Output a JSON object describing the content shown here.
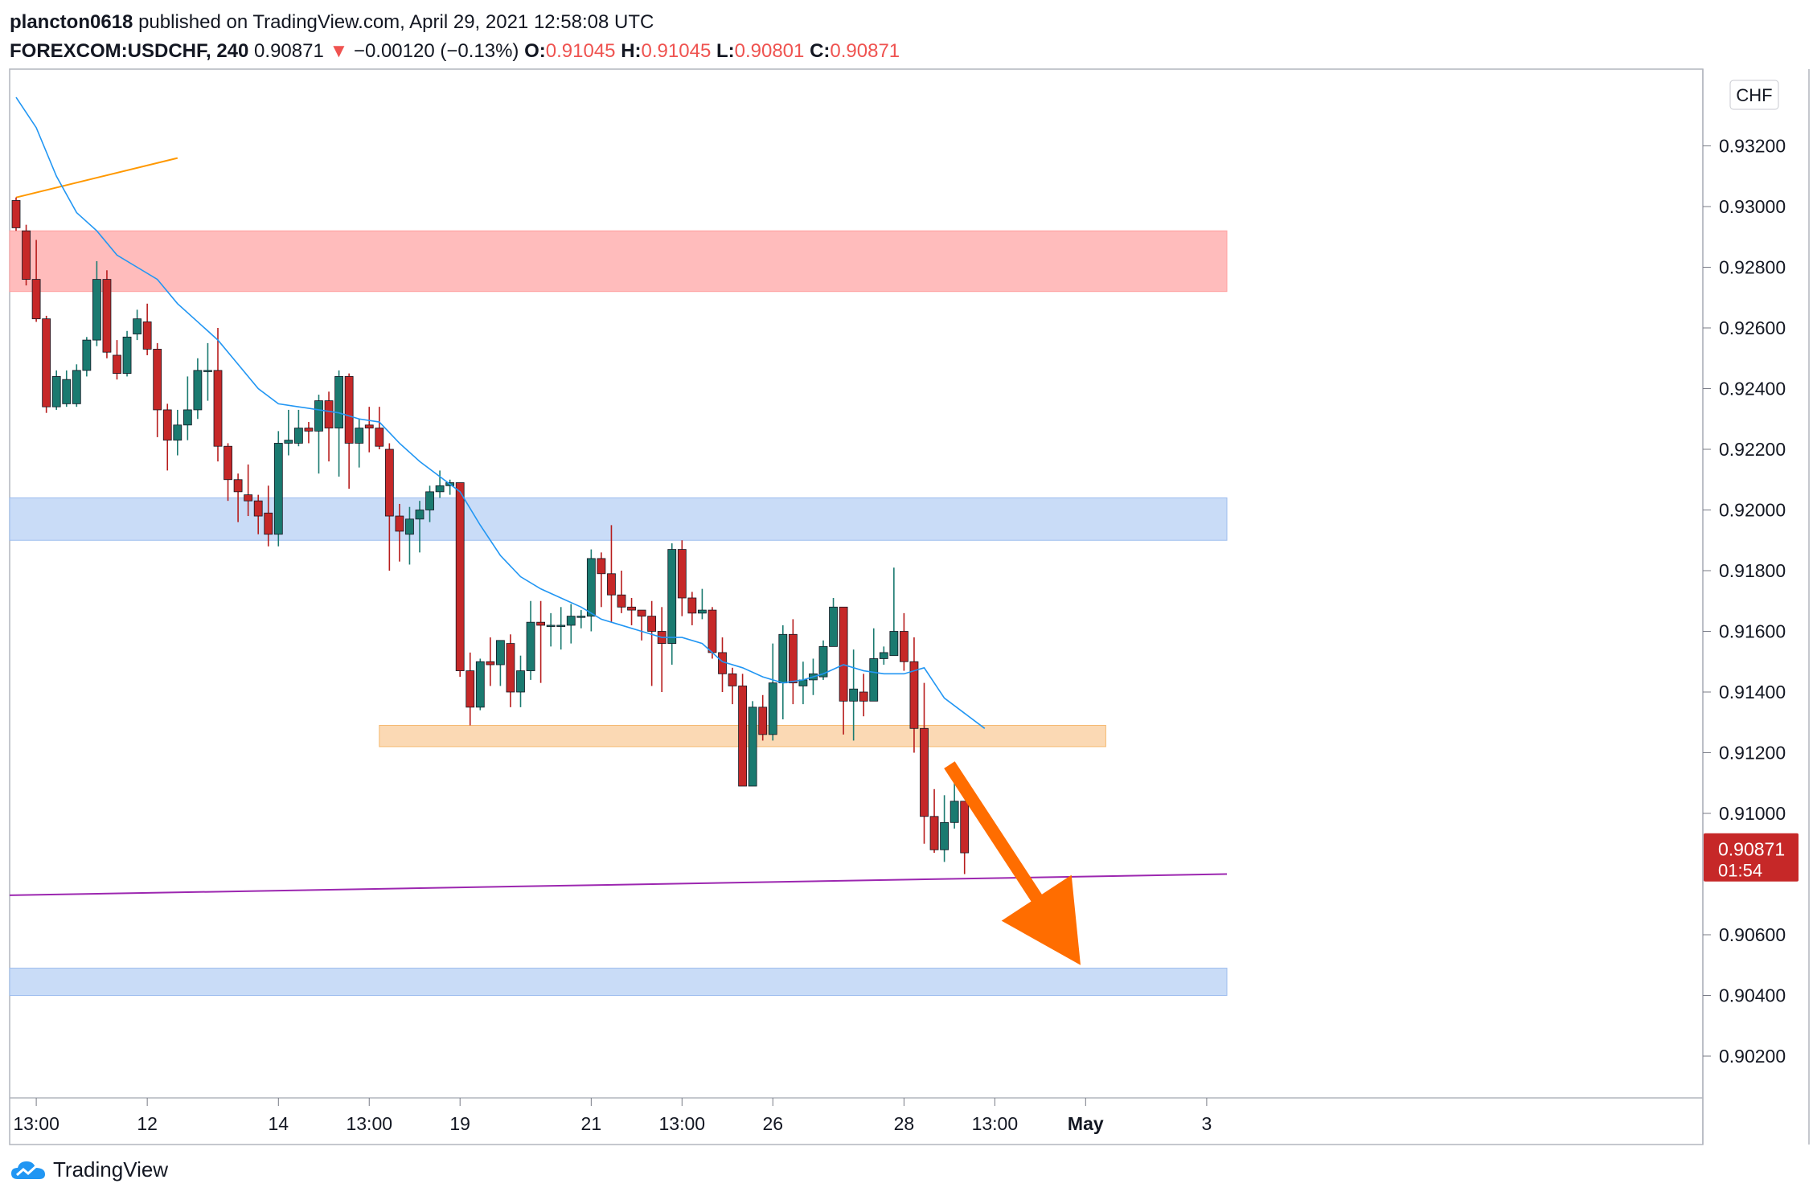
{
  "header": {
    "publisher": "plancton0618",
    "published_text": "published on TradingView.com, April 29, 2021 12:58:08 UTC",
    "symbol": "FOREXCOM:USDCHF, 240",
    "last": "0.90871",
    "arrow": "▼",
    "change": "−0.00120 (−0.13%)",
    "o_label": "O:",
    "o_value": "0.91045",
    "h_label": "H:",
    "h_value": "0.91045",
    "l_label": "L:",
    "l_value": "0.90801",
    "c_label": "C:",
    "c_value": "0.90871"
  },
  "footer": {
    "brand": "TradingView"
  },
  "colors": {
    "bull": "#26a69a",
    "bull_fill": "#1a7a70",
    "bear": "#c62828",
    "bear_wick": "#b71c1c",
    "ma": "#2196f3",
    "trend_orange": "#ff9800",
    "trend_purple": "#9c27b0",
    "zone_red": "#ffbcbc",
    "zone_blue": "#c9dcf7",
    "zone_orange": "#fbd9b4",
    "arrow": "#ff6d00",
    "price_badge": "#c62828"
  },
  "chart_data": {
    "type": "candlestick",
    "currency_label": "CHF",
    "y_ticks": [
      "0.93200",
      "0.93000",
      "0.92800",
      "0.92600",
      "0.92400",
      "0.92200",
      "0.92000",
      "0.91800",
      "0.91600",
      "0.91400",
      "0.91200",
      "0.91000",
      "0.90600",
      "0.90400",
      "0.90200"
    ],
    "y_tick_values": [
      0.932,
      0.93,
      0.928,
      0.926,
      0.924,
      0.922,
      0.92,
      0.918,
      0.916,
      0.914,
      0.912,
      0.91,
      0.906,
      0.904,
      0.902
    ],
    "ylim": [
      0.9008,
      0.934
    ],
    "x_ticks": [
      {
        "label": "13:00",
        "index": 2
      },
      {
        "label": "12",
        "index": 13
      },
      {
        "label": "14",
        "index": 26
      },
      {
        "label": "13:00",
        "index": 35
      },
      {
        "label": "19",
        "index": 44
      },
      {
        "label": "21",
        "index": 57
      },
      {
        "label": "13:00",
        "index": 66
      },
      {
        "label": "26",
        "index": 75
      },
      {
        "label": "28",
        "index": 88
      },
      {
        "label": "13:00",
        "index": 97
      },
      {
        "label": "May",
        "index": 106
      },
      {
        "label": "3",
        "index": 118
      }
    ],
    "current_price": {
      "value": 0.90871,
      "label": "0.90871",
      "countdown": "01:54"
    },
    "zones": [
      {
        "type": "resistance",
        "y_top": 0.9292,
        "y_bottom": 0.9272,
        "from_index": -1,
        "to_index": 120
      },
      {
        "type": "support",
        "y_top": 0.9204,
        "y_bottom": 0.919,
        "from_index": -1,
        "to_index": 120
      },
      {
        "type": "support",
        "y_top": 0.9049,
        "y_bottom": 0.904,
        "from_index": -1,
        "to_index": 120
      },
      {
        "type": "breakout",
        "y_top": 0.9129,
        "y_bottom": 0.9122,
        "from_index": 36,
        "to_index": 108
      }
    ],
    "trendlines": [
      {
        "name": "orange",
        "from": [
          0,
          0.9303
        ],
        "to": [
          16,
          0.9316
        ]
      },
      {
        "name": "purple",
        "from": [
          -1,
          0.9073
        ],
        "to": [
          120,
          0.908
        ]
      }
    ],
    "arrow": {
      "from": [
        92.5,
        0.9116
      ],
      "to": [
        105.5,
        0.905
      ]
    },
    "candles": [
      [
        0.9302,
        0.9293,
        0.9303,
        0.9292
      ],
      [
        0.9292,
        0.9276,
        0.9294,
        0.9274
      ],
      [
        0.9276,
        0.9263,
        0.9289,
        0.9262
      ],
      [
        0.9263,
        0.9234,
        0.9264,
        0.9232
      ],
      [
        0.9234,
        0.9244,
        0.9246,
        0.9233
      ],
      [
        0.9235,
        0.9243,
        0.9246,
        0.9234
      ],
      [
        0.9235,
        0.9246,
        0.9248,
        0.9234
      ],
      [
        0.9246,
        0.9256,
        0.9257,
        0.9244
      ],
      [
        0.9256,
        0.9276,
        0.9282,
        0.9254
      ],
      [
        0.9276,
        0.9252,
        0.9279,
        0.925
      ],
      [
        0.9251,
        0.9245,
        0.9256,
        0.9243
      ],
      [
        0.9245,
        0.9257,
        0.9259,
        0.9244
      ],
      [
        0.9258,
        0.9263,
        0.9266,
        0.9256
      ],
      [
        0.9262,
        0.9253,
        0.9268,
        0.9251
      ],
      [
        0.9253,
        0.9233,
        0.9255,
        0.9224
      ],
      [
        0.9233,
        0.9223,
        0.9235,
        0.9213
      ],
      [
        0.9223,
        0.9228,
        0.9233,
        0.9218
      ],
      [
        0.9228,
        0.9233,
        0.9244,
        0.9223
      ],
      [
        0.9233,
        0.9246,
        0.925,
        0.923
      ],
      [
        0.9246,
        0.9246,
        0.9255,
        0.9236
      ],
      [
        0.9246,
        0.9221,
        0.926,
        0.9216
      ],
      [
        0.9221,
        0.921,
        0.9222,
        0.9203
      ],
      [
        0.921,
        0.9206,
        0.9212,
        0.9196
      ],
      [
        0.9205,
        0.9203,
        0.9215,
        0.9198
      ],
      [
        0.9203,
        0.9198,
        0.9205,
        0.9192
      ],
      [
        0.9199,
        0.9192,
        0.9208,
        0.9188
      ],
      [
        0.9192,
        0.9222,
        0.9226,
        0.9188
      ],
      [
        0.9222,
        0.9223,
        0.9233,
        0.9218
      ],
      [
        0.9222,
        0.9227,
        0.9233,
        0.9221
      ],
      [
        0.9227,
        0.9226,
        0.9229,
        0.9222
      ],
      [
        0.9226,
        0.9236,
        0.9238,
        0.9212
      ],
      [
        0.9236,
        0.9227,
        0.9239,
        0.9216
      ],
      [
        0.9227,
        0.9244,
        0.9246,
        0.9211
      ],
      [
        0.9244,
        0.9222,
        0.9245,
        0.9207
      ],
      [
        0.9222,
        0.9227,
        0.923,
        0.9214
      ],
      [
        0.9228,
        0.9227,
        0.9234,
        0.9219
      ],
      [
        0.9227,
        0.9221,
        0.9234,
        0.922
      ],
      [
        0.922,
        0.9198,
        0.9222,
        0.918
      ],
      [
        0.9198,
        0.9193,
        0.9202,
        0.9183
      ],
      [
        0.9192,
        0.9197,
        0.9201,
        0.9182
      ],
      [
        0.9197,
        0.92,
        0.9203,
        0.9186
      ],
      [
        0.92,
        0.9206,
        0.9208,
        0.9196
      ],
      [
        0.9206,
        0.9208,
        0.9213,
        0.9204
      ],
      [
        0.9208,
        0.9209,
        0.921,
        0.9205
      ],
      [
        0.9209,
        0.9147,
        0.9209,
        0.9145
      ],
      [
        0.9147,
        0.9135,
        0.9153,
        0.9129
      ],
      [
        0.9135,
        0.915,
        0.9151,
        0.9134
      ],
      [
        0.915,
        0.9149,
        0.9158,
        0.9142
      ],
      [
        0.9149,
        0.9157,
        0.9157,
        0.9142
      ],
      [
        0.9156,
        0.914,
        0.9159,
        0.9135
      ],
      [
        0.914,
        0.9147,
        0.9152,
        0.9135
      ],
      [
        0.9147,
        0.9163,
        0.917,
        0.9144
      ],
      [
        0.9163,
        0.9162,
        0.917,
        0.9143
      ],
      [
        0.9162,
        0.9162,
        0.9166,
        0.9155
      ],
      [
        0.9162,
        0.9162,
        0.9168,
        0.9154
      ],
      [
        0.9162,
        0.9165,
        0.9169,
        0.9156
      ],
      [
        0.9165,
        0.9165,
        0.9167,
        0.9161
      ],
      [
        0.9165,
        0.9184,
        0.9187,
        0.916
      ],
      [
        0.9184,
        0.9179,
        0.9186,
        0.9168
      ],
      [
        0.9179,
        0.9172,
        0.9195,
        0.9163
      ],
      [
        0.9172,
        0.9168,
        0.918,
        0.9166
      ],
      [
        0.9168,
        0.9167,
        0.9171,
        0.9162
      ],
      [
        0.9167,
        0.9165,
        0.9167,
        0.9157
      ],
      [
        0.9165,
        0.916,
        0.917,
        0.9142
      ],
      [
        0.916,
        0.9156,
        0.9168,
        0.914
      ],
      [
        0.9156,
        0.9187,
        0.9189,
        0.9149
      ],
      [
        0.9187,
        0.9171,
        0.919,
        0.9165
      ],
      [
        0.9171,
        0.9166,
        0.9173,
        0.9162
      ],
      [
        0.9166,
        0.9167,
        0.9174,
        0.9164
      ],
      [
        0.9167,
        0.9153,
        0.9168,
        0.9151
      ],
      [
        0.9153,
        0.9146,
        0.9158,
        0.914
      ],
      [
        0.9146,
        0.9142,
        0.9148,
        0.9136
      ],
      [
        0.9142,
        0.9109,
        0.9146,
        0.9109
      ],
      [
        0.9109,
        0.9135,
        0.9137,
        0.9109
      ],
      [
        0.9135,
        0.9126,
        0.9139,
        0.9124
      ],
      [
        0.9126,
        0.9143,
        0.9156,
        0.9124
      ],
      [
        0.9143,
        0.9159,
        0.9162,
        0.9131
      ],
      [
        0.9159,
        0.9143,
        0.9164,
        0.9136
      ],
      [
        0.9142,
        0.9144,
        0.915,
        0.9136
      ],
      [
        0.9144,
        0.9146,
        0.9151,
        0.9139
      ],
      [
        0.9145,
        0.9155,
        0.9157,
        0.9144
      ],
      [
        0.9155,
        0.9168,
        0.9171,
        0.9155
      ],
      [
        0.9168,
        0.9137,
        0.9168,
        0.9126
      ],
      [
        0.9137,
        0.9141,
        0.9154,
        0.9124
      ],
      [
        0.914,
        0.9137,
        0.9146,
        0.9132
      ],
      [
        0.9137,
        0.9151,
        0.9161,
        0.9137
      ],
      [
        0.9151,
        0.9153,
        0.9155,
        0.9149
      ],
      [
        0.9152,
        0.916,
        0.9181,
        0.9155
      ],
      [
        0.916,
        0.915,
        0.9166,
        0.9147
      ],
      [
        0.915,
        0.9128,
        0.9158,
        0.912
      ],
      [
        0.9128,
        0.9099,
        0.9143,
        0.909
      ],
      [
        0.9099,
        0.9088,
        0.9108,
        0.9087
      ],
      [
        0.9088,
        0.9097,
        0.9106,
        0.9084
      ],
      [
        0.9097,
        0.9104,
        0.9113,
        0.9095
      ],
      [
        0.9104,
        0.9087,
        0.9104,
        0.908
      ]
    ],
    "ma": [
      [
        0,
        0.9336
      ],
      [
        2,
        0.9326
      ],
      [
        4,
        0.931
      ],
      [
        6,
        0.9298
      ],
      [
        8,
        0.9292
      ],
      [
        10,
        0.9284
      ],
      [
        12,
        0.928
      ],
      [
        14,
        0.9276
      ],
      [
        16,
        0.9268
      ],
      [
        18,
        0.9262
      ],
      [
        20,
        0.9256
      ],
      [
        22,
        0.9248
      ],
      [
        24,
        0.924
      ],
      [
        26,
        0.9235
      ],
      [
        28,
        0.9234
      ],
      [
        30,
        0.9233
      ],
      [
        32,
        0.9232
      ],
      [
        34,
        0.923
      ],
      [
        36,
        0.9229
      ],
      [
        38,
        0.9222
      ],
      [
        40,
        0.9216
      ],
      [
        42,
        0.9211
      ],
      [
        44,
        0.9206
      ],
      [
        46,
        0.9195
      ],
      [
        48,
        0.9185
      ],
      [
        50,
        0.9178
      ],
      [
        52,
        0.9174
      ],
      [
        54,
        0.9171
      ],
      [
        56,
        0.9168
      ],
      [
        58,
        0.9164
      ],
      [
        60,
        0.9162
      ],
      [
        62,
        0.916
      ],
      [
        64,
        0.9158
      ],
      [
        66,
        0.9158
      ],
      [
        68,
        0.9156
      ],
      [
        70,
        0.915
      ],
      [
        72,
        0.9148
      ],
      [
        74,
        0.9145
      ],
      [
        76,
        0.9143
      ],
      [
        78,
        0.9144
      ],
      [
        80,
        0.9146
      ],
      [
        82,
        0.9149
      ],
      [
        84,
        0.9147
      ],
      [
        86,
        0.9146
      ],
      [
        88,
        0.9146
      ],
      [
        90,
        0.9148
      ],
      [
        92,
        0.9138
      ],
      [
        94,
        0.9133
      ],
      [
        96,
        0.9128
      ]
    ]
  }
}
